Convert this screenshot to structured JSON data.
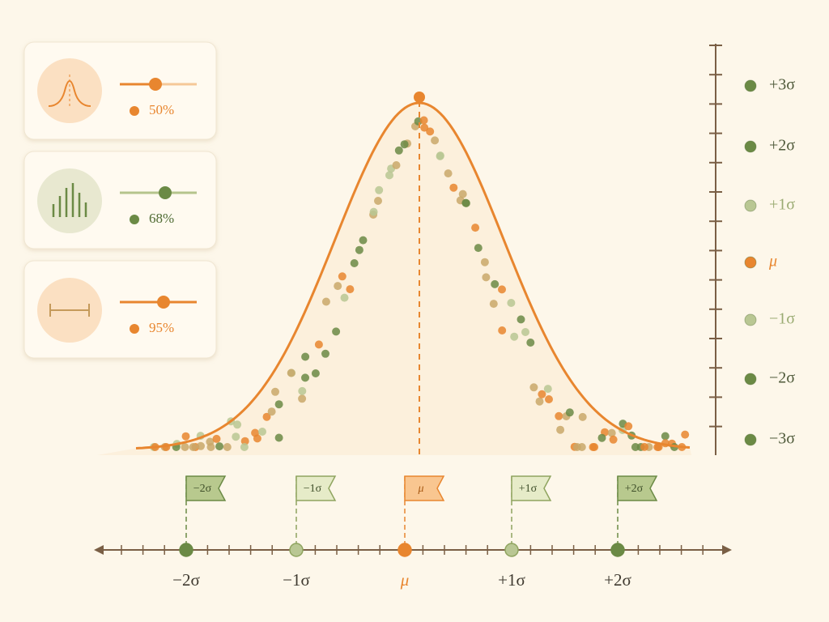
{
  "cards": [
    {
      "label": "50%"
    },
    {
      "label": "68%"
    },
    {
      "label": "95%"
    }
  ],
  "legend": [
    {
      "label": "+3σ"
    },
    {
      "label": "+2σ"
    },
    {
      "label": "+1σ"
    },
    {
      "label": "μ"
    },
    {
      "label": "−1σ"
    },
    {
      "label": "−2σ"
    },
    {
      "label": "−3σ"
    }
  ],
  "flags": [
    {
      "label": "−2σ"
    },
    {
      "label": "−1σ"
    },
    {
      "label": "μ"
    },
    {
      "label": "+1σ"
    },
    {
      "label": "+2σ"
    }
  ],
  "axis": {
    "labels": [
      "−2σ",
      "−1σ",
      "μ",
      "+1σ",
      "+2σ"
    ]
  }
}
